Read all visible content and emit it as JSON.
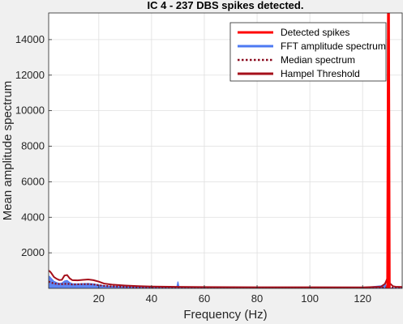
{
  "chart_data": {
    "type": "line",
    "title": "IC 4 - 237 DBS spikes detected.",
    "xlabel": "Frequency (Hz)",
    "ylabel": "Mean amplitude spectrum",
    "xlim": [
      1,
      135
    ],
    "ylim": [
      0,
      15500
    ],
    "xticks": [
      20,
      40,
      60,
      80,
      100,
      120
    ],
    "yticks": [
      2000,
      4000,
      6000,
      8000,
      10000,
      12000,
      14000
    ],
    "grid": true,
    "legend_position": "top-right",
    "colors": {
      "detected": "#ff0000",
      "fft": "#4d79f2",
      "median": "#8b0a1e",
      "hampel": "#a50f1a"
    },
    "series": [
      {
        "name": "FFT amplitude spectrum",
        "style": "area",
        "x": [
          1,
          1.5,
          2,
          3,
          4,
          5,
          6,
          7,
          8,
          9,
          10,
          12,
          14,
          16,
          18,
          20,
          22,
          25,
          30,
          35,
          40,
          45,
          49,
          49.6,
          50,
          50.4,
          51,
          55,
          60,
          70,
          80,
          90,
          100,
          110,
          120,
          127,
          128.5,
          129.2,
          129.5,
          129.8,
          130.2,
          130.5,
          131,
          132,
          135
        ],
        "y": [
          700,
          650,
          560,
          400,
          330,
          280,
          300,
          420,
          450,
          330,
          260,
          250,
          270,
          280,
          250,
          200,
          150,
          120,
          90,
          70,
          60,
          55,
          50,
          100,
          380,
          100,
          50,
          45,
          40,
          35,
          30,
          30,
          28,
          25,
          40,
          150,
          250,
          80,
          60,
          40,
          25,
          22,
          20,
          18,
          15
        ]
      },
      {
        "name": "Median spectrum",
        "style": "dotted",
        "x": [
          1,
          2,
          3,
          4,
          6,
          8,
          10,
          12,
          14,
          16,
          18,
          20,
          22,
          25,
          30,
          35,
          40,
          50,
          60,
          80,
          100,
          120,
          127,
          129,
          130,
          131,
          135
        ],
        "y": [
          380,
          320,
          280,
          250,
          240,
          260,
          220,
          230,
          240,
          240,
          220,
          180,
          140,
          110,
          85,
          65,
          55,
          45,
          40,
          32,
          28,
          25,
          30,
          60,
          80,
          40,
          20
        ]
      },
      {
        "name": "Hampel Threshold",
        "style": "line",
        "x": [
          1,
          1.5,
          2,
          3,
          4,
          5,
          6,
          7,
          8,
          9,
          10,
          12,
          14,
          16,
          18,
          20,
          22,
          25,
          30,
          35,
          40,
          50,
          60,
          80,
          100,
          120,
          127,
          128.5,
          129.2,
          129.6,
          130.2,
          130.8,
          131.5,
          132.5,
          135
        ],
        "y": [
          1000,
          950,
          860,
          640,
          540,
          470,
          480,
          720,
          750,
          560,
          460,
          450,
          480,
          500,
          460,
          380,
          270,
          210,
          160,
          125,
          105,
          85,
          75,
          65,
          60,
          55,
          90,
          260,
          500,
          380,
          300,
          220,
          120,
          90,
          80
        ]
      },
      {
        "name": "Detected spikes",
        "style": "line",
        "x": [
          129.2,
          129.5,
          129.8,
          130.1,
          130.4
        ],
        "y": [
          0,
          15500,
          15500,
          15500,
          0
        ]
      }
    ]
  }
}
